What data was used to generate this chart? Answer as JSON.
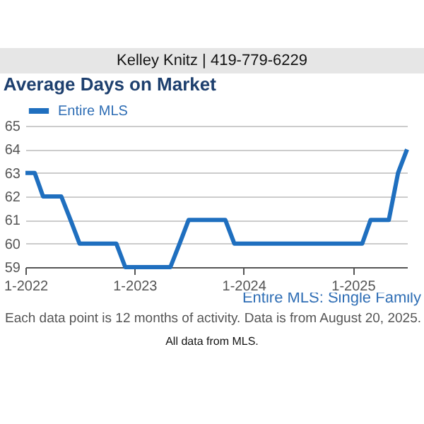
{
  "chart_data": {
    "type": "line",
    "title": "Average Days on Market",
    "annotations": [
      "Kelley Knitz | 419-779-6229",
      "Entire MLS: Single Family",
      "Each data point is 12 months of activity. Data is from August 20, 2025.",
      "All data from MLS."
    ],
    "x": [
      "2022-01",
      "2022-02",
      "2022-03",
      "2022-04",
      "2022-05",
      "2022-06",
      "2022-07",
      "2022-08",
      "2022-09",
      "2022-10",
      "2022-11",
      "2022-12",
      "2023-01",
      "2023-02",
      "2023-03",
      "2023-04",
      "2023-05",
      "2023-06",
      "2023-07",
      "2023-08",
      "2023-09",
      "2023-10",
      "2023-11",
      "2023-12",
      "2024-01",
      "2024-02",
      "2024-03",
      "2024-04",
      "2024-05",
      "2024-06",
      "2024-07",
      "2024-08",
      "2024-09",
      "2024-10",
      "2024-11",
      "2024-12",
      "2025-01",
      "2025-02",
      "2025-03",
      "2025-04",
      "2025-05",
      "2025-06",
      "2025-07"
    ],
    "series": [
      {
        "name": "Entire MLS",
        "color": "#1f6fbf",
        "values": [
          63,
          63,
          62,
          62,
          62,
          61,
          60,
          60,
          60,
          60,
          60,
          59,
          59,
          59,
          59,
          59,
          59,
          60,
          61,
          61,
          61,
          61,
          61,
          60,
          60,
          60,
          60,
          60,
          60,
          60,
          60,
          60,
          60,
          60,
          60,
          60,
          60,
          60,
          61,
          61,
          61,
          63,
          64
        ]
      }
    ],
    "xlim": [
      "2022-01",
      "2025-07"
    ],
    "xticks": [
      {
        "value": "2022-01",
        "label": "1-2022"
      },
      {
        "value": "2023-01",
        "label": "1-2023"
      },
      {
        "value": "2024-01",
        "label": "1-2024"
      },
      {
        "value": "2025-01",
        "label": "1-2025"
      }
    ],
    "ylim": [
      59,
      65
    ],
    "yticks": [
      59,
      60,
      61,
      62,
      63,
      64,
      65
    ],
    "grid": "y",
    "legend": "top",
    "marker": "none",
    "line_style": "solid"
  }
}
